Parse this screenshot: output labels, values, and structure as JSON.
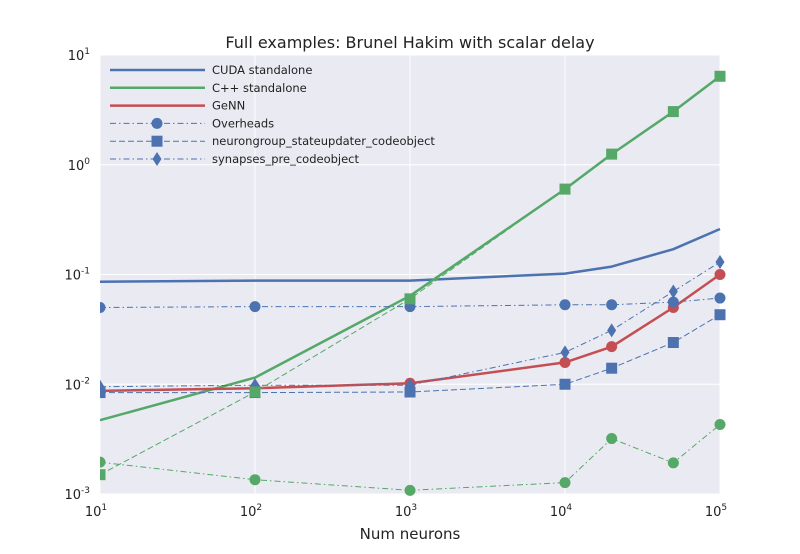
{
  "chart_data": {
    "type": "line",
    "title": "Full examples: Brunel Hakim with scalar delay",
    "xlabel": "Num neurons",
    "ylabel": "",
    "xscale": "log",
    "yscale": "log",
    "xlim": [
      10,
      100000
    ],
    "ylim": [
      0.001,
      10
    ],
    "grid": true,
    "legend_position": "top-left",
    "x_ticks": [
      {
        "base": "10",
        "exp": "1"
      },
      {
        "base": "10",
        "exp": "2"
      },
      {
        "base": "10",
        "exp": "3"
      },
      {
        "base": "10",
        "exp": "4"
      },
      {
        "base": "10",
        "exp": "5"
      }
    ],
    "y_ticks": [
      {
        "base": "10",
        "exp": "-3"
      },
      {
        "base": "10",
        "exp": "-2"
      },
      {
        "base": "10",
        "exp": "-1"
      },
      {
        "base": "10",
        "exp": "0"
      },
      {
        "base": "10",
        "exp": "1"
      }
    ],
    "x": [
      10,
      100,
      1000,
      10000,
      20000,
      50000,
      100000
    ],
    "legend": [
      {
        "label": "CUDA standalone",
        "color": "#4c72b0",
        "style": "solid",
        "marker": "none"
      },
      {
        "label": "C++ standalone",
        "color": "#55a868",
        "style": "solid",
        "marker": "none"
      },
      {
        "label": "GeNN",
        "color": "#c44e52",
        "style": "solid",
        "marker": "none"
      },
      {
        "label": "Overheads",
        "color": "#4c72b0",
        "style": "dashdot",
        "marker": "circle"
      },
      {
        "label": "neurongroup_stateupdater_codeobject",
        "color": "#4c72b0",
        "style": "dashed",
        "marker": "square"
      },
      {
        "label": "synapses_pre_codeobject",
        "color": "#4c72b0",
        "style": "dashdot",
        "marker": "diamond"
      }
    ],
    "series": [
      {
        "name": "CUDA standalone",
        "color": "#4c72b0",
        "style": "solid",
        "marker": "none",
        "width": 2.5,
        "values": [
          0.086,
          0.088,
          0.088,
          0.102,
          0.118,
          0.17,
          0.26
        ]
      },
      {
        "name": "C++ standalone",
        "color": "#55a868",
        "style": "solid",
        "marker": "none",
        "width": 2.5,
        "values": [
          0.0047,
          0.0115,
          0.064,
          0.6,
          1.25,
          3.05,
          6.4
        ]
      },
      {
        "name": "GeNN",
        "color": "#c44e52",
        "style": "solid",
        "marker": "circle",
        "width": 2.5,
        "values": [
          0.0087,
          0.0092,
          0.0102,
          0.0158,
          0.022,
          0.05,
          0.1
        ]
      },
      {
        "name": "Overheads",
        "color": "#4c72b0",
        "style": "dashdot",
        "marker": "circle",
        "width": 1,
        "values": [
          0.05,
          0.051,
          0.051,
          0.053,
          0.053,
          0.056,
          0.061
        ]
      },
      {
        "name": "neurongroup_stateupdater_codeobject",
        "color": "#4c72b0",
        "style": "dashed",
        "marker": "square",
        "width": 1,
        "values": [
          0.0084,
          0.0084,
          0.0085,
          0.01,
          0.014,
          0.024,
          0.043
        ]
      },
      {
        "name": "synapses_pre_codeobject",
        "color": "#4c72b0",
        "style": "dashdot",
        "marker": "diamond",
        "width": 1,
        "values": [
          0.0095,
          0.0098,
          0.0098,
          0.0195,
          0.031,
          0.07,
          0.13
        ]
      },
      {
        "color": "#55a868",
        "style": "dashdot",
        "marker": "circle",
        "width": 1,
        "values": [
          0.00195,
          0.00135,
          0.00108,
          0.00127,
          0.0032,
          0.00192,
          0.0043
        ]
      },
      {
        "color": "#55a868",
        "style": "dashed",
        "marker": "square",
        "width": 1,
        "values": [
          0.0015,
          0.0085,
          0.06,
          0.6,
          1.25,
          3.05,
          6.4
        ]
      }
    ]
  }
}
